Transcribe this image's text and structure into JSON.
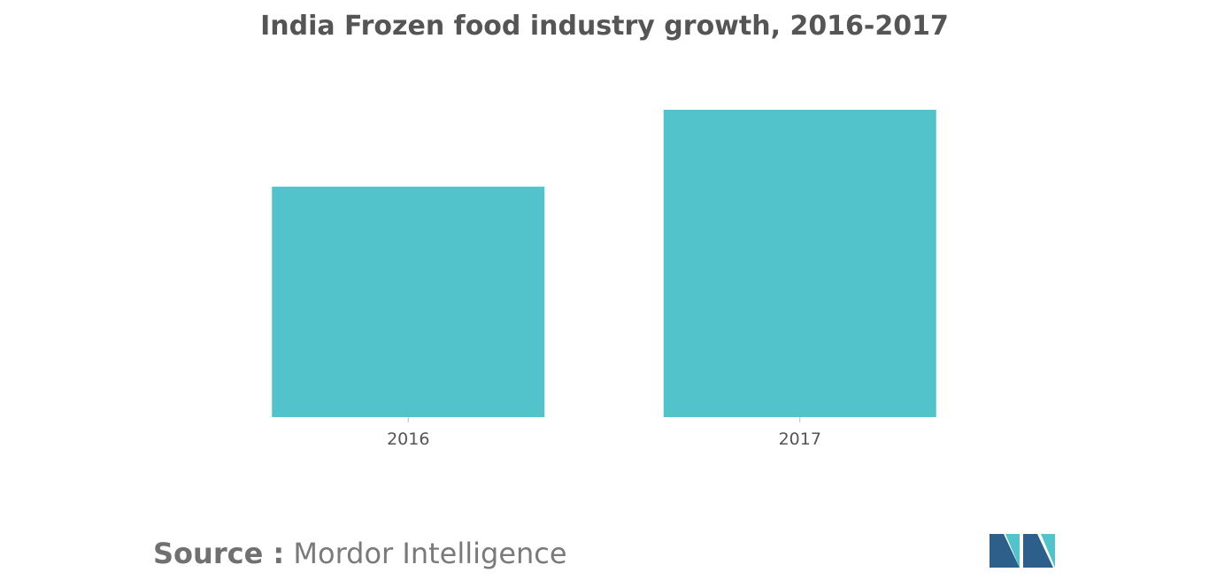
{
  "chart_data": {
    "type": "bar",
    "title": "India Frozen food industry growth, 2016-2017",
    "categories": [
      "2016",
      "2017"
    ],
    "values": [
      75,
      100
    ],
    "xlabel": "",
    "ylabel": "",
    "ylim": [
      0,
      100
    ],
    "grid": false,
    "legend": "none",
    "bar_color": "#52C3CA",
    "axis_color": "#BBBBBB"
  },
  "source": {
    "label": "Source :",
    "value": "Mordor Intelligence"
  },
  "logo": {
    "icon": "mordor-intelligence-logo",
    "colors": [
      "#2C5F8A",
      "#52C3CA"
    ]
  }
}
